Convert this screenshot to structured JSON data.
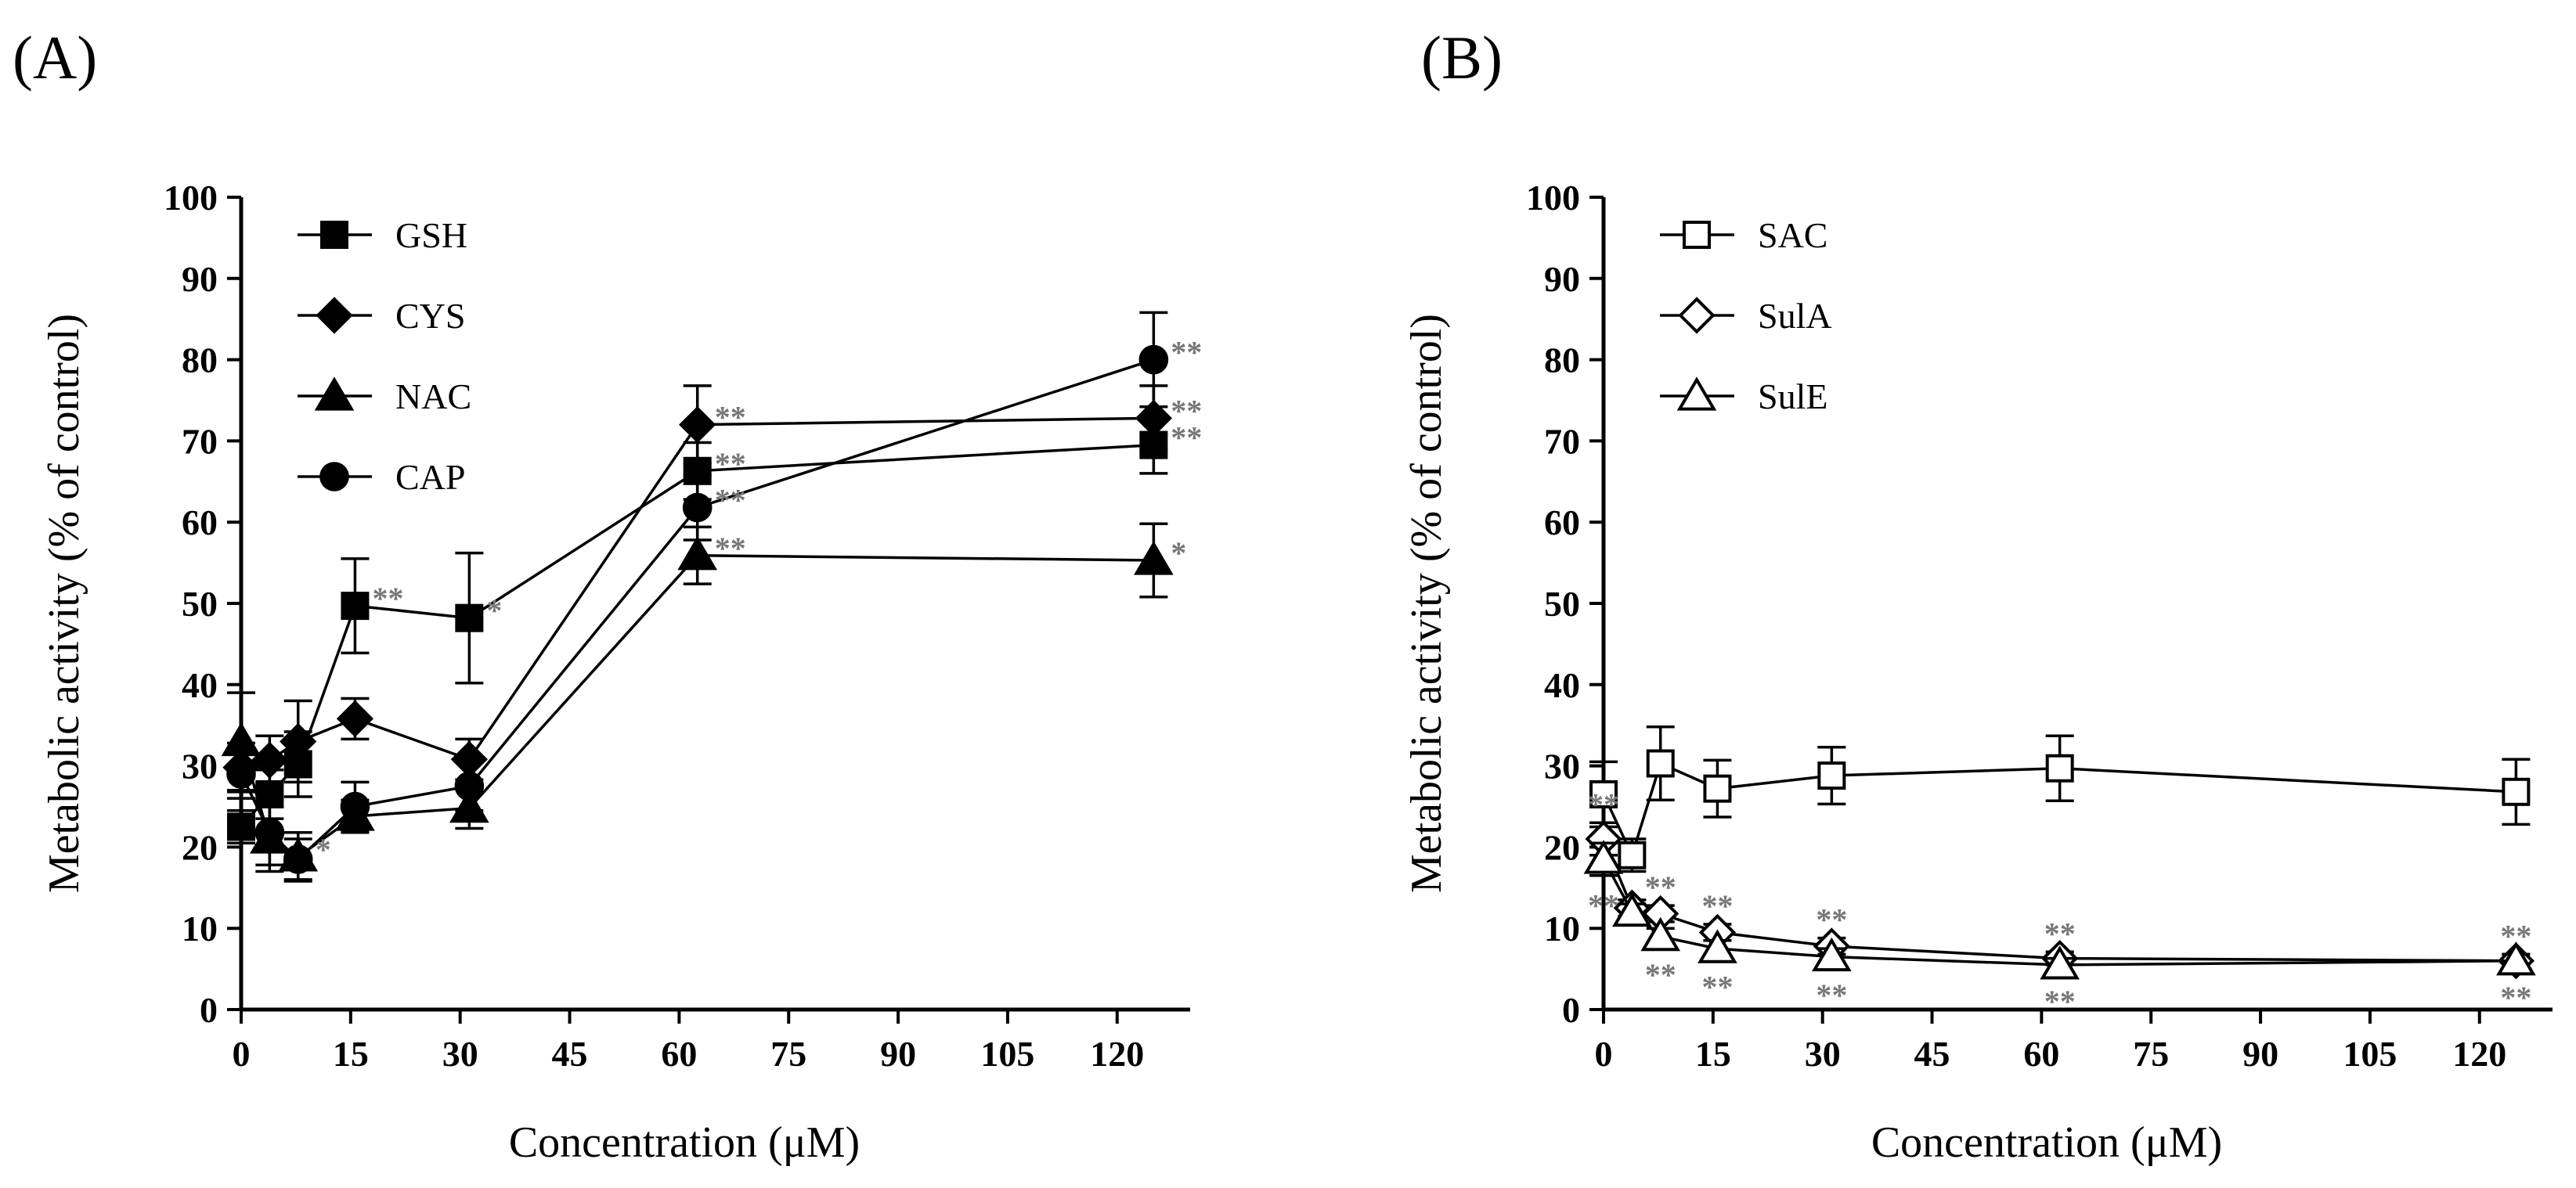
{
  "chart_data": [
    {
      "panel_label": "(A)",
      "type": "line",
      "title": "",
      "xlabel": "Concentration (μM)",
      "ylabel": "Metabolic activity (% of control)",
      "xlim": [
        0,
        130
      ],
      "ylim": [
        0,
        100
      ],
      "xticks": [
        0,
        15,
        30,
        45,
        60,
        75,
        90,
        105,
        120
      ],
      "yticks": [
        0,
        10,
        20,
        30,
        40,
        50,
        60,
        70,
        80,
        90,
        100
      ],
      "x": [
        0,
        3.9,
        7.8,
        15.6,
        31.25,
        62.5,
        125
      ],
      "legend_position": "top-left",
      "series": [
        {
          "name": "GSH",
          "marker": "square-filled",
          "values": [
            22.5,
            26.5,
            30.2,
            49.7,
            48.2,
            66.3,
            69.5
          ],
          "errors": [
            2.0,
            3.0,
            4.0,
            5.8,
            8.0,
            3.5,
            3.5
          ],
          "sig": [
            "",
            "",
            "",
            "**",
            "*",
            "**",
            "**"
          ]
        },
        {
          "name": "CYS",
          "marker": "diamond-filled",
          "values": [
            29.8,
            30.7,
            33.0,
            35.8,
            30.8,
            72.0,
            72.8
          ],
          "errors": [
            3.0,
            3.0,
            5.0,
            2.5,
            2.5,
            4.8,
            4.0
          ],
          "sig": [
            "",
            "",
            "",
            "",
            "",
            "**",
            "**"
          ]
        },
        {
          "name": "NAC",
          "marker": "triangle-filled",
          "values": [
            33.0,
            21.0,
            18.8,
            23.8,
            24.8,
            55.9,
            55.3
          ],
          "errors": [
            6.0,
            4.0,
            3.0,
            2.0,
            2.5,
            3.5,
            4.5
          ],
          "sig": [
            "",
            "",
            "*",
            "",
            "",
            "**",
            "*"
          ]
        },
        {
          "name": "CAP",
          "marker": "circle-filled",
          "values": [
            29.0,
            21.8,
            18.5,
            25.0,
            27.5,
            61.8,
            80.0
          ],
          "errors": [
            3.0,
            4.0,
            2.5,
            3.0,
            3.0,
            4.0,
            5.8
          ],
          "sig": [
            "",
            "",
            "",
            "",
            "",
            "**",
            "**"
          ]
        }
      ]
    },
    {
      "panel_label": "(B)",
      "type": "line",
      "title": "",
      "xlabel": "Concentration (μM)",
      "ylabel": "Metabolic activity (% of control)",
      "xlim": [
        0,
        130
      ],
      "ylim": [
        0,
        100
      ],
      "xticks": [
        0,
        15,
        30,
        45,
        60,
        75,
        90,
        105,
        120
      ],
      "yticks": [
        0,
        10,
        20,
        30,
        40,
        50,
        60,
        70,
        80,
        90,
        100
      ],
      "x": [
        0,
        3.9,
        7.8,
        15.6,
        31.25,
        62.5,
        125
      ],
      "legend_position": "top-left",
      "series": [
        {
          "name": "SAC",
          "marker": "square-open",
          "values": [
            26.5,
            19.0,
            30.3,
            27.2,
            28.8,
            29.7,
            26.8
          ],
          "errors": [
            4.0,
            2.0,
            4.5,
            3.5,
            3.5,
            4.0,
            4.0
          ],
          "sig": [
            "",
            "",
            "",
            "",
            "",
            "",
            ""
          ],
          "sig_pos": "above"
        },
        {
          "name": "SulA",
          "marker": "diamond-open",
          "values": [
            21.0,
            12.5,
            11.8,
            9.5,
            7.8,
            6.3,
            6.0
          ],
          "errors": [
            2.0,
            1.0,
            1.0,
            1.0,
            1.0,
            0.8,
            0.8
          ],
          "sig": [
            "**",
            "",
            "**",
            "**",
            "**",
            "**",
            "**"
          ],
          "sig_pos": "above"
        },
        {
          "name": "SulE",
          "marker": "triangle-open",
          "values": [
            18.5,
            12.0,
            9.0,
            7.5,
            6.5,
            5.5,
            6.0
          ],
          "errors": [
            2.0,
            1.0,
            1.0,
            1.0,
            1.0,
            0.8,
            0.8
          ],
          "sig": [
            "**",
            "",
            "**",
            "**",
            "**",
            "**",
            "**"
          ],
          "sig_pos": "below"
        }
      ]
    }
  ]
}
